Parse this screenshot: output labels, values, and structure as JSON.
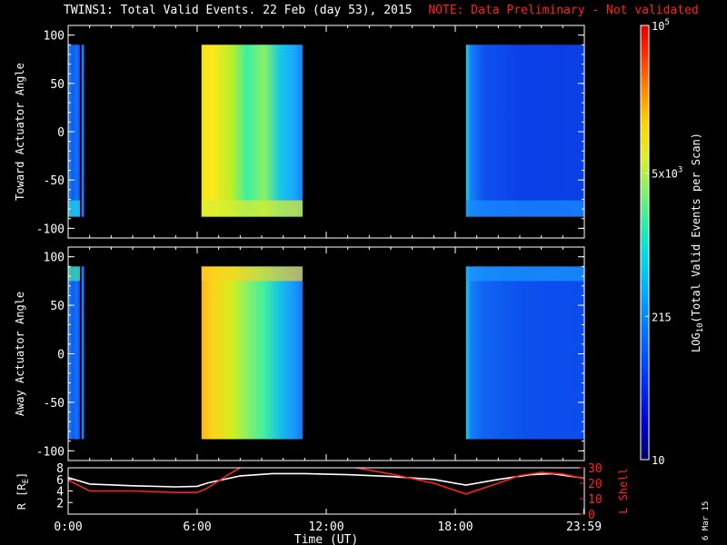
{
  "title": {
    "main": "TWINS1: Total Valid Events. 22 Feb (day  53), 2015",
    "note": "NOTE: Data Preliminary - Not validated"
  },
  "colors": {
    "background": "#000000",
    "foreground": "#ffffff",
    "note": "#ff2020",
    "lshell": "#ff2020",
    "radius": "#ffffff"
  },
  "date_stamp": "6 Mar 15",
  "chart_data": [
    {
      "type": "heatmap",
      "name": "toward-panel",
      "ylabel": "Toward Actuator Angle",
      "ylim": [
        -110,
        110
      ],
      "yticks": [
        100,
        50,
        0,
        -50,
        -100
      ],
      "xlim": [
        0,
        24
      ],
      "data_ylim": [
        -88,
        90
      ],
      "blocks": [
        {
          "x": [
            0.0,
            0.55
          ],
          "c": [
            [
              0.0,
              "#1a8fff"
            ],
            [
              0.35,
              "#0f5cf0"
            ],
            [
              0.75,
              "#1470f8"
            ],
            [
              1.0,
              "#0a48e6"
            ]
          ],
          "bottom": "#22d3e8"
        },
        {
          "x": [
            0.62,
            0.74
          ],
          "c": [
            [
              0.0,
              "#1d7af8"
            ],
            [
              1.0,
              "#1d7af8"
            ]
          ],
          "bottom": "#1d7af8"
        },
        {
          "x": [
            6.2,
            10.9
          ],
          "c": [
            [
              0.0,
              "#f2e21a"
            ],
            [
              0.1,
              "#ffe81a"
            ],
            [
              0.3,
              "#b8f02a"
            ],
            [
              0.45,
              "#3cf0a6"
            ],
            [
              0.62,
              "#8af065"
            ],
            [
              0.78,
              "#14c8e8"
            ],
            [
              0.92,
              "#1aa6ff"
            ],
            [
              1.0,
              "#1580f6"
            ]
          ],
          "bottom": "#d8ee32"
        },
        {
          "x": [
            18.5,
            24.0
          ],
          "c": [
            [
              0.0,
              "#20d8e0"
            ],
            [
              0.04,
              "#1580f8"
            ],
            [
              0.15,
              "#0f52f0"
            ],
            [
              0.5,
              "#0a3ee6"
            ],
            [
              1.0,
              "#0a40e6"
            ]
          ],
          "bottom": "#1a8cff"
        }
      ]
    },
    {
      "type": "heatmap",
      "name": "away-panel",
      "ylabel": "Away Actuator Angle",
      "ylim": [
        -110,
        110
      ],
      "yticks": [
        100,
        50,
        0,
        -50,
        -100
      ],
      "xlim": [
        0,
        24
      ],
      "data_ylim": [
        -88,
        90
      ],
      "blocks": [
        {
          "x": [
            0.0,
            0.55
          ],
          "c": [
            [
              0.0,
              "#1a8fff"
            ],
            [
              0.35,
              "#0f5cf0"
            ],
            [
              0.75,
              "#1470f8"
            ],
            [
              1.0,
              "#0a48e6"
            ]
          ],
          "top": "#44f0a0"
        },
        {
          "x": [
            0.62,
            0.74
          ],
          "c": [
            [
              0.0,
              "#1d7af8"
            ],
            [
              1.0,
              "#1d7af8"
            ]
          ],
          "top": "#1d7af8"
        },
        {
          "x": [
            6.2,
            10.9
          ],
          "c": [
            [
              0.0,
              "#ffb020"
            ],
            [
              0.1,
              "#ffd21a"
            ],
            [
              0.3,
              "#d4ee20"
            ],
            [
              0.45,
              "#8af065"
            ],
            [
              0.62,
              "#40f0a0"
            ],
            [
              0.78,
              "#14c0e8"
            ],
            [
              0.92,
              "#1a96ff"
            ],
            [
              1.0,
              "#1578f4"
            ]
          ],
          "top": "#ffd020"
        },
        {
          "x": [
            18.5,
            24.0
          ],
          "c": [
            [
              0.0,
              "#20d0e8"
            ],
            [
              0.04,
              "#1580f8"
            ],
            [
              0.15,
              "#1064f4"
            ],
            [
              0.5,
              "#0c50ee"
            ],
            [
              1.0,
              "#0c4cec"
            ]
          ],
          "top": "#1aa0ff"
        }
      ]
    },
    {
      "type": "line",
      "name": "orbit-panel",
      "xlabel": "Time (UT)",
      "xticks": [
        "0:00",
        "6:00",
        "12:00",
        "18:00",
        "23:59"
      ],
      "xtick_values": [
        0,
        6,
        12,
        18,
        23.98
      ],
      "xlim": [
        0,
        24
      ],
      "ylabel": "R [R",
      "ylabel_sub": "E",
      "ylabel_end": "]",
      "ylim": [
        0,
        8
      ],
      "yticks": [
        2,
        4,
        6,
        8
      ],
      "y2label": "L Shell",
      "y2lim": [
        0,
        30
      ],
      "y2ticks": [
        0,
        10,
        20,
        30
      ],
      "series": [
        {
          "axis": "left",
          "color": "#ffffff",
          "x": [
            0,
            1,
            3,
            5,
            6,
            6.5,
            8,
            9.5,
            11,
            13,
            15,
            17,
            18.5,
            20,
            21.5,
            22.5,
            24
          ],
          "y": [
            6.3,
            5.2,
            4.9,
            4.7,
            4.8,
            5.4,
            6.6,
            7.0,
            7.0,
            6.8,
            6.5,
            6.0,
            5.0,
            6.0,
            6.8,
            7.0,
            6.2
          ]
        },
        {
          "axis": "right",
          "color": "#ff2020",
          "x": [
            0,
            1,
            3,
            5,
            6,
            6.5,
            7.5,
            8,
            9.0,
            11,
            13,
            15,
            17,
            18.5,
            20,
            21,
            22,
            23,
            24
          ],
          "y": [
            22,
            15,
            15,
            14,
            14,
            17,
            26,
            30,
            null,
            null,
            31,
            26,
            20,
            13,
            20,
            25,
            27,
            26,
            23
          ]
        }
      ]
    },
    {
      "type": "colorbar",
      "name": "colorbar",
      "label_pre": "LOG",
      "label_sub": "10",
      "label_post": "(Total Valid  Events per Scan)",
      "ticks": [
        {
          "base": "10",
          "exp": "5",
          "pos": 1.0
        },
        {
          "base": "5x10",
          "exp": "3",
          "pos": 0.66
        },
        {
          "base": "215",
          "exp": "",
          "pos": 0.33
        },
        {
          "base": "10",
          "exp": "",
          "pos": 0.0
        }
      ],
      "stops": [
        [
          0.0,
          "#000064"
        ],
        [
          0.08,
          "#0000c8"
        ],
        [
          0.18,
          "#0030ff"
        ],
        [
          0.3,
          "#0078ff"
        ],
        [
          0.4,
          "#00b4ff"
        ],
        [
          0.48,
          "#00e0e0"
        ],
        [
          0.55,
          "#30f0a0"
        ],
        [
          0.63,
          "#90f060"
        ],
        [
          0.7,
          "#e0f020"
        ],
        [
          0.78,
          "#ffd000"
        ],
        [
          0.86,
          "#ff8000"
        ],
        [
          0.94,
          "#ff2800"
        ],
        [
          1.0,
          "#e00000"
        ]
      ]
    }
  ]
}
